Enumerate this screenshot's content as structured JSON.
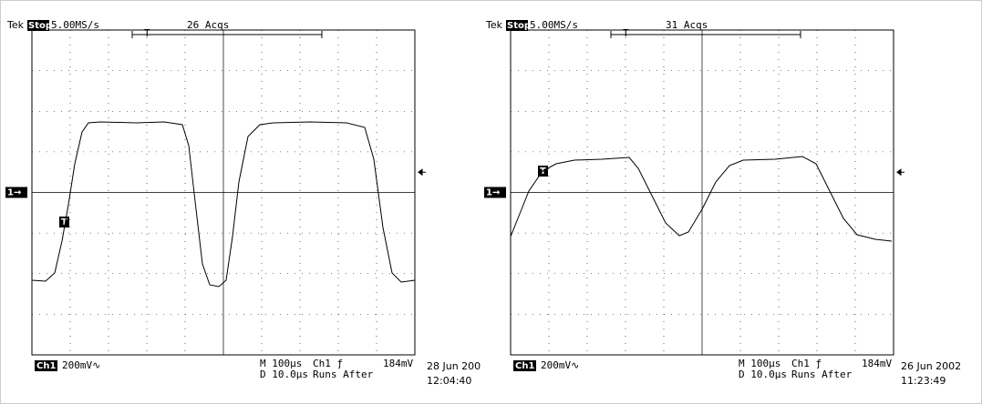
{
  "screens": [
    {
      "header": {
        "brand": "Tek",
        "state": "Stop:",
        "rate": "5.00MS/s",
        "acqs": "26 Acqs"
      },
      "markers": {
        "channel": "1→",
        "trigger": "T"
      },
      "footer": {
        "channel": "Ch1",
        "scale": "200mV∿",
        "timebase": "M 100µs",
        "delay": "D 10.0µs",
        "trigger": "Ch1 ƒ",
        "level": "184mV",
        "mode": "Runs After",
        "date": "28 Jun 200",
        "time": "12:04:40"
      }
    },
    {
      "header": {
        "brand": "Tek",
        "state": "Stop:",
        "rate": "5.00MS/s",
        "acqs": "31 Acqs"
      },
      "markers": {
        "channel": "1→",
        "trigger": "T"
      },
      "footer": {
        "channel": "Ch1",
        "scale": "200mV∿",
        "timebase": "M 100µs",
        "delay": "D 10.0µs",
        "trigger": "Ch1 ƒ",
        "level": "184mV",
        "mode": "Runs After",
        "date": "26 Jun 2002",
        "time": "11:23:49"
      }
    }
  ]
}
